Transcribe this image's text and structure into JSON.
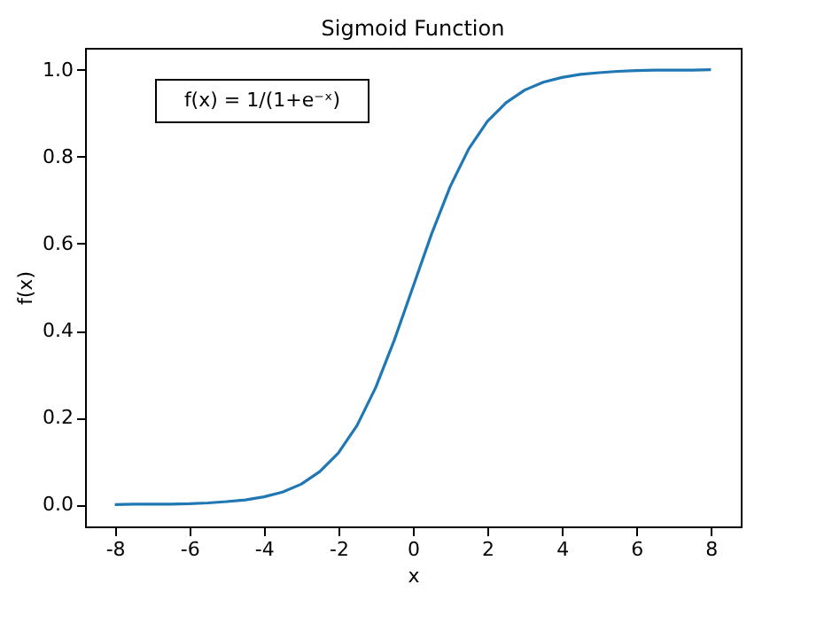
{
  "chart_data": {
    "type": "line",
    "title": "Sigmoid Function",
    "xlabel": "x",
    "ylabel": "f(x)",
    "annotations": [
      "f(x) = 1/(1+e⁻ˣ)"
    ],
    "x": [
      -8,
      -7.5,
      -7,
      -6.5,
      -6,
      -5.5,
      -5,
      -4.5,
      -4,
      -3.5,
      -3,
      -2.5,
      -2,
      -1.5,
      -1,
      -0.5,
      0,
      0.5,
      1,
      1.5,
      2,
      2.5,
      3,
      3.5,
      4,
      4.5,
      5,
      5.5,
      6,
      6.5,
      7,
      7.5,
      8
    ],
    "series": [
      {
        "color": "#1f77b4",
        "values": [
          0.0,
          0.001,
          0.001,
          0.001,
          0.002,
          0.004,
          0.007,
          0.011,
          0.018,
          0.029,
          0.047,
          0.076,
          0.119,
          0.182,
          0.269,
          0.378,
          0.5,
          0.622,
          0.731,
          0.818,
          0.881,
          0.924,
          0.953,
          0.971,
          0.982,
          0.989,
          0.993,
          0.996,
          0.998,
          0.999,
          0.999,
          0.999,
          1.0
        ]
      }
    ],
    "xlim": [
      -8.8,
      8.8
    ],
    "ylim": [
      -0.05,
      1.05
    ],
    "xticks": [
      -8,
      -6,
      -4,
      -2,
      0,
      2,
      4,
      6,
      8
    ],
    "yticks": [
      {
        "value": 0,
        "label": "0.0"
      },
      {
        "value": 0.2,
        "label": "0.2"
      },
      {
        "value": 0.4,
        "label": "0.4"
      },
      {
        "value": 0.6,
        "label": "0.6"
      },
      {
        "value": 0.8,
        "label": "0.8"
      },
      {
        "value": 1,
        "label": "1.0"
      }
    ],
    "grid": false,
    "marker": "none",
    "line_style": "solid"
  }
}
